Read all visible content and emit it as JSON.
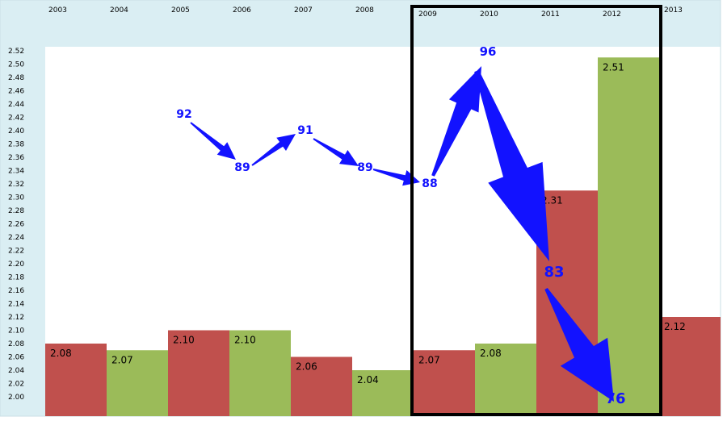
{
  "chart_data": {
    "type": "bar",
    "categories": [
      "2003",
      "2004",
      "2005",
      "2006",
      "2007",
      "2008",
      "2009",
      "2010",
      "2011",
      "2012",
      "2013"
    ],
    "values": [
      2.08,
      2.07,
      2.1,
      2.1,
      2.06,
      2.04,
      2.07,
      2.08,
      2.31,
      2.51,
      2.12
    ],
    "value_labels": [
      "2.08",
      "2.07",
      "2.10",
      "2.10",
      "2.06",
      "2.04",
      "2.07",
      "2.08",
      "2.31",
      "2.51",
      "2.12"
    ],
    "bar_colors": [
      "#c0504d",
      "#9bbb59",
      "#c0504d",
      "#9bbb59",
      "#c0504d",
      "#9bbb59",
      "#c0504d",
      "#9bbb59",
      "#c0504d",
      "#9bbb59",
      "#c0504d"
    ],
    "ylim": [
      2.0,
      2.52
    ],
    "y_ticks": [
      "2.00",
      "2.02",
      "2.04",
      "2.06",
      "2.08",
      "2.10",
      "2.12",
      "2.14",
      "2.16",
      "2.18",
      "2.20",
      "2.22",
      "2.24",
      "2.26",
      "2.28",
      "2.30",
      "2.32",
      "2.34",
      "2.36",
      "2.38",
      "2.40",
      "2.42",
      "2.44",
      "2.46",
      "2.48",
      "2.50",
      "2.52"
    ],
    "highlight_box": {
      "from": "2009",
      "to": "2012"
    },
    "annotations": {
      "color": "#1212ff",
      "labels": [
        {
          "text": "92",
          "year": "2005"
        },
        {
          "text": "89",
          "year": "2006"
        },
        {
          "text": "91",
          "year": "2007"
        },
        {
          "text": "89",
          "year": "2008"
        },
        {
          "text": "88",
          "year": "2009"
        },
        {
          "text": "96",
          "year": "2010"
        },
        {
          "text": "83",
          "year": "2011"
        },
        {
          "text": "76",
          "year": "2012"
        }
      ]
    },
    "header_band_color": "#daeef3"
  }
}
